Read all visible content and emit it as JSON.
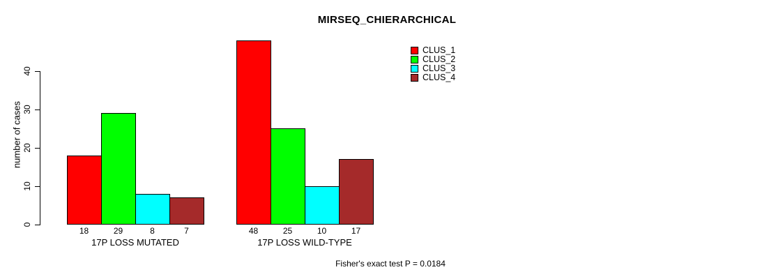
{
  "chart_data": {
    "type": "bar",
    "title": "MIRSEQ_CHIERARCHICAL",
    "ylabel": "number of cases",
    "xlabel": "",
    "ylim": [
      0,
      40
    ],
    "yticks": [
      0,
      10,
      20,
      30,
      40
    ],
    "grid": false,
    "legend_position": "top-right",
    "series": [
      {
        "name": "CLUS_1",
        "color": "#FF0000"
      },
      {
        "name": "CLUS_2",
        "color": "#00FF00"
      },
      {
        "name": "CLUS_3",
        "color": "#00FFFF"
      },
      {
        "name": "CLUS_4",
        "color": "#A52A2A"
      }
    ],
    "groups": [
      {
        "label": "17P LOSS MUTATED",
        "values": [
          18,
          29,
          8,
          7
        ]
      },
      {
        "label": "17P LOSS WILD-TYPE",
        "values": [
          48,
          25,
          10,
          17
        ]
      }
    ],
    "bar_value_labels": true,
    "annotation": "Fisher's exact test P = 0.0184",
    "text_color": "#000000",
    "background_color": "#FFFFFF"
  }
}
